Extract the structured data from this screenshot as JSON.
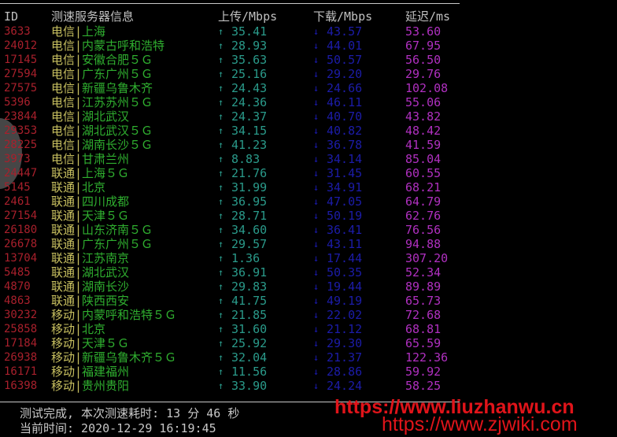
{
  "header": {
    "id": "ID",
    "server": "测速服务器信息",
    "upload": "上传/Mbps",
    "download": "下载/Mbps",
    "latency": "延迟/ms"
  },
  "icons": {
    "upload": "↑",
    "download": "↓"
  },
  "separator": "|",
  "colors": {
    "id": "#a8202c",
    "carrier": "#c8c060",
    "city": "#2fae2f",
    "upload": "#2a9a8a",
    "download": "#1c1ca8",
    "latency": "#b030c0"
  },
  "rows": [
    {
      "id": "3633",
      "carrier": "电信",
      "city": "上海",
      "up": "35.41",
      "down": "43.57",
      "latency": "53.60"
    },
    {
      "id": "24012",
      "carrier": "电信",
      "city": "内蒙古呼和浩特",
      "up": "28.93",
      "down": "44.01",
      "latency": "67.95"
    },
    {
      "id": "17145",
      "carrier": "电信",
      "city": "安徽合肥５Ｇ",
      "up": "35.63",
      "down": "50.57",
      "latency": "56.50"
    },
    {
      "id": "27594",
      "carrier": "电信",
      "city": "广东广州５Ｇ",
      "up": "25.16",
      "down": "29.20",
      "latency": "29.76"
    },
    {
      "id": "27575",
      "carrier": "电信",
      "city": "新疆乌鲁木齐",
      "up": "24.43",
      "down": "24.66",
      "latency": "102.08"
    },
    {
      "id": "5396",
      "carrier": "电信",
      "city": "江苏苏州５Ｇ",
      "up": "24.36",
      "down": "46.11",
      "latency": "55.06"
    },
    {
      "id": "23844",
      "carrier": "电信",
      "city": "湖北武汉",
      "up": "24.37",
      "down": "40.70",
      "latency": "43.82"
    },
    {
      "id": "29353",
      "carrier": "电信",
      "city": "湖北武汉５Ｇ",
      "up": "34.15",
      "down": "40.82",
      "latency": "48.42"
    },
    {
      "id": "28225",
      "carrier": "电信",
      "city": "湖南长沙５Ｇ",
      "up": "41.23",
      "down": "36.78",
      "latency": "41.59"
    },
    {
      "id": "3973",
      "carrier": "电信",
      "city": "甘肃兰州",
      "up": "8.83",
      "down": "34.14",
      "latency": "85.04"
    },
    {
      "id": "24447",
      "carrier": "联通",
      "city": "上海５Ｇ",
      "up": "21.76",
      "down": "31.45",
      "latency": "60.55"
    },
    {
      "id": "5145",
      "carrier": "联通",
      "city": "北京",
      "up": "31.99",
      "down": "34.91",
      "latency": "68.21"
    },
    {
      "id": "2461",
      "carrier": "联通",
      "city": "四川成都",
      "up": "36.95",
      "down": "47.05",
      "latency": "64.79"
    },
    {
      "id": "27154",
      "carrier": "联通",
      "city": "天津５Ｇ",
      "up": "28.71",
      "down": "50.19",
      "latency": "62.76"
    },
    {
      "id": "26180",
      "carrier": "联通",
      "city": "山东济南５Ｇ",
      "up": "34.60",
      "down": "36.41",
      "latency": "76.56"
    },
    {
      "id": "26678",
      "carrier": "联通",
      "city": "广东广州５Ｇ",
      "up": "29.57",
      "down": "43.11",
      "latency": "94.88"
    },
    {
      "id": "13704",
      "carrier": "联通",
      "city": "江苏南京",
      "up": "1.36",
      "down": "17.44",
      "latency": "307.20"
    },
    {
      "id": "5485",
      "carrier": "联通",
      "city": "湖北武汉",
      "up": "36.91",
      "down": "50.35",
      "latency": "52.34"
    },
    {
      "id": "4870",
      "carrier": "联通",
      "city": "湖南长沙",
      "up": "29.83",
      "down": "19.44",
      "latency": "89.89"
    },
    {
      "id": "4863",
      "carrier": "联通",
      "city": "陕西西安",
      "up": "41.75",
      "down": "49.19",
      "latency": "65.73"
    },
    {
      "id": "30232",
      "carrier": "移动",
      "city": "内蒙呼和浩特５Ｇ",
      "up": "21.85",
      "down": "22.02",
      "latency": "72.68"
    },
    {
      "id": "25858",
      "carrier": "移动",
      "city": "北京",
      "up": "31.60",
      "down": "21.12",
      "latency": "68.81"
    },
    {
      "id": "17184",
      "carrier": "移动",
      "city": "天津５Ｇ",
      "up": "25.92",
      "down": "29.30",
      "latency": "65.59"
    },
    {
      "id": "26938",
      "carrier": "移动",
      "city": "新疆乌鲁木齐５Ｇ",
      "up": "32.04",
      "down": "21.37",
      "latency": "122.36"
    },
    {
      "id": "16171",
      "carrier": "移动",
      "city": "福建福州",
      "up": "11.56",
      "down": "28.86",
      "latency": "59.92"
    },
    {
      "id": "16398",
      "carrier": "移动",
      "city": "贵州贵阳",
      "up": "33.90",
      "down": "24.24",
      "latency": "58.25"
    }
  ],
  "footer": {
    "done": "测试完成, 本次测速耗时: 13 分 46 秒",
    "time": "当前时间: 2020-12-29 16:19:45"
  },
  "watermarks": {
    "w1": "https://www.liuzhanwu.cn",
    "w2": "https://www.zjwiki.com"
  }
}
